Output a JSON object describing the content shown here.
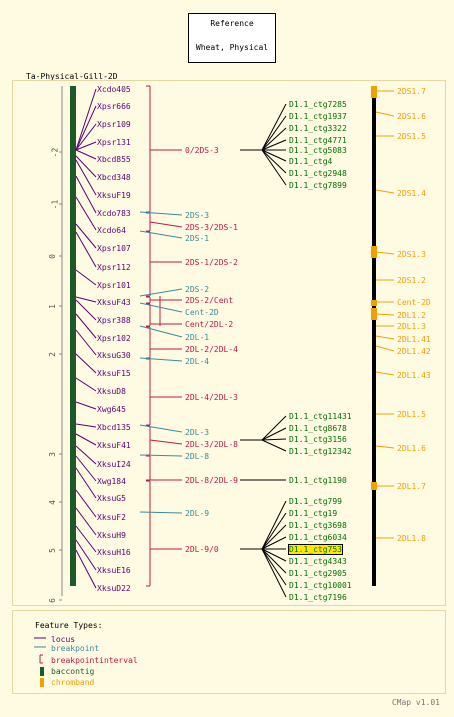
{
  "reference": {
    "line1": "Reference",
    "line2": "Wheat, Physical"
  },
  "map_title": "Ta-Physical-Gill-2D",
  "axis_ticks": [
    "-2",
    "-1",
    "0",
    "1",
    "2",
    "3",
    "4",
    "5",
    "6"
  ],
  "loci": [
    "Xcdo405",
    "Xpsr666",
    "Xpsr109",
    "Xpsr131",
    "Xbcd855",
    "Xbcd348",
    "XksuF19",
    "Xcdo783",
    "Xcdo64",
    "Xpsr107",
    "Xpsr112",
    "Xpsr101",
    "XksuF43",
    "Xpsr388",
    "Xpsr102",
    "XksuG30",
    "XksuF15",
    "XksuD8",
    "Xwg645",
    "Xbcd135",
    "XksuF41",
    "XksuI24",
    "Xwg184",
    "XksuG5",
    "XksuF2",
    "XksuH9",
    "XksuH16",
    "XksuE16",
    "XksuD22"
  ],
  "breakpoints": [
    "2DS-3",
    "2DS-1",
    "2DS-2",
    "Cent-2D",
    "2DL-1",
    "2DL-4",
    "2DL-3",
    "2DL-8",
    "2DL-9"
  ],
  "intervals": [
    "0/2DS-3",
    "2DS-3/2DS-1",
    "2DS-1/2DS-2",
    "2DS-2/Cent",
    "Cent/2DL-2",
    "2DL-2/2DL-4",
    "2DL-4/2DL-3",
    "2DL-3/2DL-8",
    "2DL-8/2DL-9",
    "2DL-9/0"
  ],
  "contigs": {
    "group1": [
      "D1.1_ctg7285",
      "D1.1_ctg1937",
      "D1.1_ctg3322",
      "D1.1_ctg4771",
      "D1.1_ctg5083",
      "D1.1_ctg4",
      "D1.1_ctg2948",
      "D1.1_ctg7899"
    ],
    "group2": [
      "D1.1_ctg11431",
      "D1.1_ctg8678",
      "D1.1_ctg3156",
      "D1.1_ctg12342"
    ],
    "group3": [
      "D1.1_ctg1190"
    ],
    "group4": [
      "D1.1_ctg799",
      "D1.1_ctg19",
      "D1.1_ctg3698",
      "D1.1_ctg6034",
      "D1.1_ctg753",
      "D1.1_ctg4343",
      "D1.1_ctg2905",
      "D1.1_ctg10001",
      "D1.1_ctg7196"
    ],
    "highlighted": "D1.1_ctg753"
  },
  "chrombands": [
    "2DS1.7",
    "2DS1.6",
    "2DS1.5",
    "2DS1.4",
    "2DS1.3",
    "2DS1.2",
    "Cent-2D",
    "2DL1.2",
    "2DL1.3",
    "2DL1.41",
    "2DL1.42",
    "2DL1.43",
    "2DL1.5",
    "2DL1.6",
    "2DL1.7",
    "2DL1.8"
  ],
  "legend": {
    "title": "Feature Types:",
    "items": [
      {
        "label": "locus",
        "color": "#5a0078"
      },
      {
        "label": "breakpoint",
        "color": "#3a8a9e"
      },
      {
        "label": "breakpointinterval",
        "color": "#c01848"
      },
      {
        "label": "baccontig",
        "color": "#1e5a28"
      },
      {
        "label": "chromband",
        "color": "#f0a000"
      }
    ]
  },
  "footer": "CMap v1.01",
  "colors": {
    "background": "#fffbe3",
    "locus": "#5a0078",
    "breakpoint": "#3a8a9e",
    "interval": "#c01848",
    "contig": "#007000",
    "chromband": "#f0a000",
    "highlight": "#ffe800"
  }
}
